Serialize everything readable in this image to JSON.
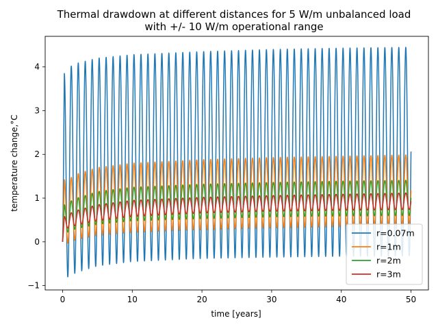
{
  "chart_data": {
    "type": "line",
    "title": [
      "Thermal drawdown at different distances for 5 W/m unbalanced load",
      "with +/- 10 W/m operational range"
    ],
    "xlabel": "time [years]",
    "ylabel": "temperature change,°C",
    "xlim": [
      -2.5,
      52.5
    ],
    "ylim": [
      -1.1,
      4.7
    ],
    "xticks": [
      0,
      10,
      20,
      30,
      40,
      50
    ],
    "xtick_labels": [
      "0",
      "10",
      "20",
      "30",
      "40",
      "50"
    ],
    "yticks": [
      -1,
      0,
      1,
      2,
      3,
      4
    ],
    "ytick_labels": [
      "−1",
      "0",
      "1",
      "2",
      "3",
      "4"
    ],
    "grid": false,
    "legend_position": "lower-right",
    "period_years": 1,
    "cycles": 50,
    "series": [
      {
        "name": "r=0.07m",
        "color": "#1f77b4",
        "envelope_years": [
          0.5,
          1,
          2,
          5,
          10,
          20,
          30,
          40,
          50
        ],
        "upper": [
          3.85,
          4.0,
          4.08,
          4.2,
          4.28,
          4.35,
          4.4,
          4.43,
          4.45
        ],
        "lower": [
          -0.82,
          -0.78,
          -0.7,
          -0.55,
          -0.45,
          -0.38,
          -0.35,
          -0.33,
          -0.32
        ]
      },
      {
        "name": "r=1m",
        "color": "#ff7f0e",
        "envelope_years": [
          0.5,
          1,
          2,
          5,
          10,
          20,
          30,
          40,
          50
        ],
        "upper": [
          1.42,
          1.45,
          1.55,
          1.7,
          1.8,
          1.88,
          1.93,
          1.96,
          1.99
        ],
        "lower": [
          -0.05,
          0.0,
          0.05,
          0.15,
          0.22,
          0.28,
          0.32,
          0.35,
          0.38
        ]
      },
      {
        "name": "r=2m",
        "color": "#2ca02c",
        "envelope_years": [
          0.5,
          1,
          2,
          5,
          10,
          20,
          30,
          40,
          50
        ],
        "upper": [
          0.85,
          0.92,
          1.0,
          1.15,
          1.25,
          1.32,
          1.36,
          1.39,
          1.41
        ],
        "lower": [
          0.2,
          0.25,
          0.3,
          0.4,
          0.48,
          0.53,
          0.57,
          0.59,
          0.6
        ]
      },
      {
        "name": "r=3m",
        "color": "#d62728",
        "envelope_years": [
          0.5,
          1,
          2,
          5,
          10,
          20,
          30,
          40,
          50
        ],
        "upper": [
          0.58,
          0.65,
          0.72,
          0.85,
          0.95,
          1.02,
          1.06,
          1.09,
          1.12
        ],
        "lower": [
          0.3,
          0.33,
          0.38,
          0.48,
          0.58,
          0.66,
          0.7,
          0.72,
          0.74
        ]
      }
    ]
  }
}
